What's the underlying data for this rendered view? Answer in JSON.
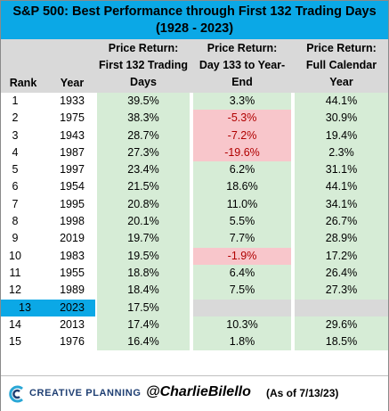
{
  "title": {
    "line1": "S&P 500: Best Performance through First 132 Trading Days",
    "line2": "(1928 - 2023)"
  },
  "headers": {
    "rank": "Rank",
    "year": "Year",
    "col1": [
      "Price Return:",
      "First 132 Trading",
      "Days"
    ],
    "col2": [
      "Price Return:",
      "Day 133 to Year-",
      "End"
    ],
    "col3": [
      "Price Return:",
      "Full Calendar",
      "Year"
    ]
  },
  "colors": {
    "title_bg": "#0ba8e6",
    "header_bg": "#d9d9d9",
    "positive_bg": "#d6ecd6",
    "negative_bg": "#f8c6cb",
    "negative_text": "#b00000",
    "highlight": "#0ba8e6"
  },
  "chart_data": {
    "type": "table",
    "columns": [
      "Rank",
      "Year",
      "Price Return: First 132 Trading Days",
      "Price Return: Day 133 to Year-End",
      "Price Return: Full Calendar Year"
    ],
    "rows": [
      {
        "rank": "1",
        "year": "1933",
        "first132": "39.5%",
        "rest": "3.3%",
        "full": "44.1%"
      },
      {
        "rank": "2",
        "year": "1975",
        "first132": "38.3%",
        "rest": "-5.3%",
        "full": "30.9%"
      },
      {
        "rank": "3",
        "year": "1943",
        "first132": "28.7%",
        "rest": "-7.2%",
        "full": "19.4%"
      },
      {
        "rank": "4",
        "year": "1987",
        "first132": "27.3%",
        "rest": "-19.6%",
        "full": "2.3%"
      },
      {
        "rank": "5",
        "year": "1997",
        "first132": "23.4%",
        "rest": "6.2%",
        "full": "31.1%"
      },
      {
        "rank": "6",
        "year": "1954",
        "first132": "21.5%",
        "rest": "18.6%",
        "full": "44.1%"
      },
      {
        "rank": "7",
        "year": "1995",
        "first132": "20.8%",
        "rest": "11.0%",
        "full": "34.1%"
      },
      {
        "rank": "8",
        "year": "1998",
        "first132": "20.1%",
        "rest": "5.5%",
        "full": "26.7%"
      },
      {
        "rank": "9",
        "year": "2019",
        "first132": "19.7%",
        "rest": "7.7%",
        "full": "28.9%"
      },
      {
        "rank": "10",
        "year": "1983",
        "first132": "19.5%",
        "rest": "-1.9%",
        "full": "17.2%"
      },
      {
        "rank": "11",
        "year": "1955",
        "first132": "18.8%",
        "rest": "6.4%",
        "full": "26.4%"
      },
      {
        "rank": "12",
        "year": "1989",
        "first132": "18.4%",
        "rest": "7.5%",
        "full": "27.3%"
      },
      {
        "rank": "13",
        "year": "2023",
        "first132": "17.5%",
        "rest": "",
        "full": "",
        "highlight": true
      },
      {
        "rank": "14",
        "year": "2013",
        "first132": "17.4%",
        "rest": "10.3%",
        "full": "29.6%"
      },
      {
        "rank": "15",
        "year": "1976",
        "first132": "16.4%",
        "rest": "1.8%",
        "full": "18.5%"
      }
    ]
  },
  "footer": {
    "logo_text": "CREATIVE PLANNING",
    "handle": "@CharlieBilello",
    "as_of": "(As of 7/13/23)"
  }
}
